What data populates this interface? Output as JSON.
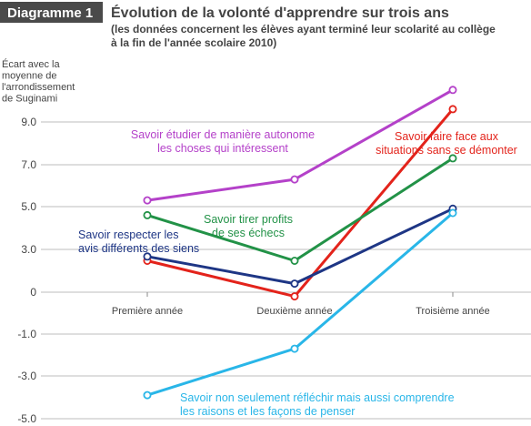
{
  "header": {
    "badge": "Diagramme 1",
    "title": "Évolution de la volonté d'apprendre sur trois ans",
    "subtitle_line1": "(les données concernent les élèves ayant terminé leur scolarité au collège",
    "subtitle_line2": "à la fin de l'année scolaire 2010)"
  },
  "colors": {
    "badge": "#4a4a4a",
    "grid": "#bdbdbd",
    "text": "#444444"
  },
  "chart_data": {
    "type": "line",
    "ylabel_lines": [
      "Écart avec la",
      "moyenne de",
      "l'arrondissement",
      "de Suginami"
    ],
    "categories": [
      "Première année",
      "Deuxième année",
      "Troisième année"
    ],
    "yticks": [
      {
        "value": 9,
        "label": "9.0"
      },
      {
        "value": 7,
        "label": "7.0"
      },
      {
        "value": 5,
        "label": "5.0"
      },
      {
        "value": 3,
        "label": "3.0"
      },
      {
        "value": 0,
        "label": "0"
      },
      {
        "value": -1,
        "label": "-1.0"
      },
      {
        "value": -3,
        "label": "-3.0"
      },
      {
        "value": -5,
        "label": "-5.0"
      }
    ],
    "grid": true,
    "series": [
      {
        "name": "Savoir étudier de manière autonome les choses qui intéressent",
        "label_lines": [
          "Savoir étudier de manière autonome",
          "les choses qui intéressent"
        ],
        "color": "#b441c9",
        "values": [
          5.3,
          6.3,
          10.5
        ]
      },
      {
        "name": "Savoir faire face aux situations sans se démonter",
        "label_lines": [
          "Savoir faire face aux",
          "situations sans se démonter"
        ],
        "color": "#e3231b",
        "values": [
          2.2,
          -0.1,
          9.6
        ]
      },
      {
        "name": "Savoir tirer profits de ses échecs",
        "label_lines": [
          "Savoir tirer profits",
          "de ses échecs"
        ],
        "color": "#229247",
        "values": [
          4.6,
          2.2,
          7.3
        ]
      },
      {
        "name": "Savoir respecter les avis différents des siens",
        "label_lines": [
          "Savoir respecter les",
          "avis différents des siens"
        ],
        "color": "#1e3685",
        "values": [
          2.5,
          0.6,
          4.9
        ]
      },
      {
        "name": "Savoir non seulement réfléchir mais aussi comprendre les raisons et les façons de penser",
        "label_lines": [
          "Savoir non seulement réfléchir mais aussi comprendre",
          "les raisons et les façons de penser"
        ],
        "color": "#29b6e8",
        "values": [
          -3.9,
          -1.7,
          4.7
        ]
      }
    ]
  }
}
